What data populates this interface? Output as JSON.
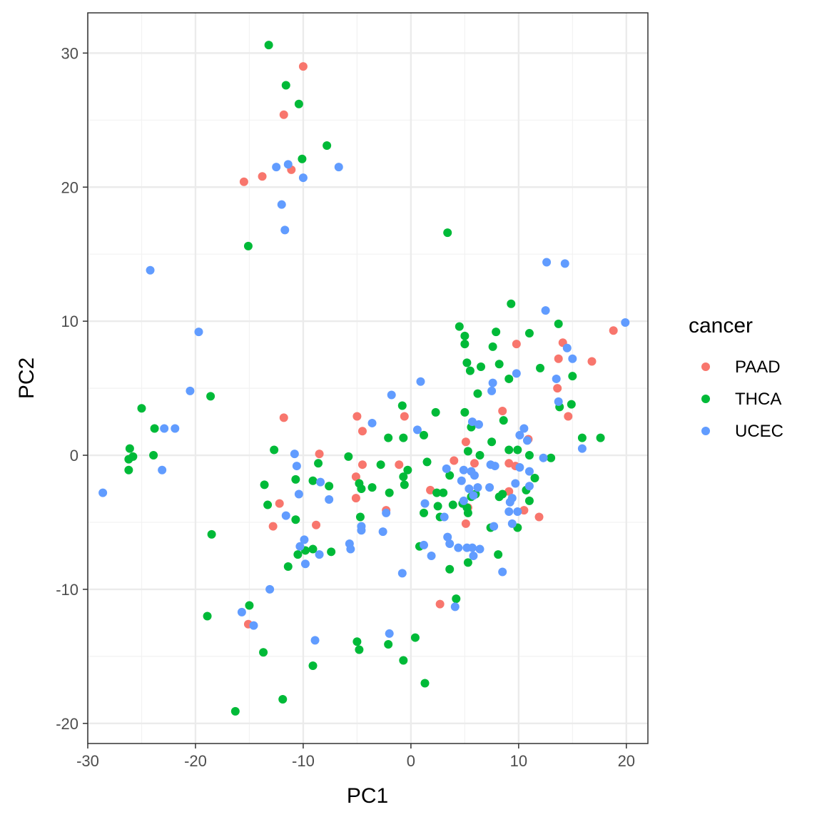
{
  "chart_data": {
    "type": "scatter",
    "xlabel": "PC1",
    "ylabel": "PC2",
    "xlim": [
      -30,
      22
    ],
    "ylim": [
      -21.5,
      33
    ],
    "x_ticks": [
      -30,
      -20,
      -10,
      0,
      10,
      20
    ],
    "y_ticks": [
      -20,
      -10,
      0,
      10,
      20,
      30
    ],
    "x_tick_labels": [
      "-30",
      "-20",
      "-10",
      "0",
      "10",
      "20"
    ],
    "y_tick_labels": [
      "-20",
      "-10",
      "0",
      "10",
      "20",
      "30"
    ],
    "grid": true,
    "legend": {
      "title": "cancer",
      "position": "right"
    },
    "series": [
      {
        "name": "PAAD",
        "color": "#F8766D",
        "points": [
          [
            -10,
            29
          ],
          [
            -11.8,
            25.4
          ],
          [
            -15.5,
            20.4
          ],
          [
            -13.8,
            20.8
          ],
          [
            -11.1,
            21.3
          ],
          [
            -11.8,
            2.8
          ],
          [
            -8.5,
            0.1
          ],
          [
            -12.2,
            -3.6
          ],
          [
            -12.8,
            -5.3
          ],
          [
            -8.8,
            -5.2
          ],
          [
            -15.1,
            -12.6
          ],
          [
            -5,
            2.9
          ],
          [
            -4.5,
            1.8
          ],
          [
            -5.1,
            -1.6
          ],
          [
            -4.5,
            -0.7
          ],
          [
            -5.1,
            -3.2
          ],
          [
            -2.3,
            -4.1
          ],
          [
            -0.6,
            2.9
          ],
          [
            -1.1,
            -0.7
          ],
          [
            1.8,
            -2.6
          ],
          [
            4,
            -0.4
          ],
          [
            5.1,
            1
          ],
          [
            5.9,
            -0.6
          ],
          [
            5.3,
            -3.9
          ],
          [
            5.1,
            -5.1
          ],
          [
            2.7,
            -11.1
          ],
          [
            8.5,
            3.3
          ],
          [
            9.8,
            8.3
          ],
          [
            9.1,
            -0.6
          ],
          [
            10.5,
            -4.1
          ],
          [
            9.1,
            -2.7
          ],
          [
            10.9,
            1.2
          ],
          [
            11.9,
            -4.6
          ],
          [
            13.6,
            5
          ],
          [
            13.7,
            7.2
          ],
          [
            14.1,
            8.4
          ],
          [
            14.6,
            2.9
          ],
          [
            16.8,
            7
          ],
          [
            18.8,
            9.3
          ],
          [
            9.7,
            -0.8
          ]
        ]
      },
      {
        "name": "THCA",
        "color": "#00BA38",
        "points": [
          [
            -13.2,
            30.6
          ],
          [
            -11.6,
            27.6
          ],
          [
            -10.4,
            26.2
          ],
          [
            -10.1,
            22.1
          ],
          [
            -7.8,
            23.1
          ],
          [
            -15.1,
            15.6
          ],
          [
            3.4,
            16.6
          ],
          [
            -25,
            3.5
          ],
          [
            -23.8,
            2
          ],
          [
            -26.1,
            0.5
          ],
          [
            -25.8,
            -0.1
          ],
          [
            -26.2,
            -0.3
          ],
          [
            -26.2,
            -1.1
          ],
          [
            -23.9,
            0
          ],
          [
            -18.6,
            4.4
          ],
          [
            -18.5,
            -5.9
          ],
          [
            -12.7,
            0.4
          ],
          [
            -13.6,
            -2.2
          ],
          [
            -13.3,
            -3.7
          ],
          [
            -10.7,
            -1.8
          ],
          [
            -10.7,
            -4.8
          ],
          [
            -8.6,
            -0.6
          ],
          [
            -7.6,
            -2.3
          ],
          [
            -9.1,
            -1.9
          ],
          [
            -9.1,
            -7
          ],
          [
            -10.5,
            -7.4
          ],
          [
            -9.8,
            -7.1
          ],
          [
            -7.4,
            -7.2
          ],
          [
            -11.4,
            -8.3
          ],
          [
            -15,
            -11.2
          ],
          [
            -18.9,
            -12
          ],
          [
            -13.7,
            -14.7
          ],
          [
            -16.3,
            -19.1
          ],
          [
            -11.9,
            -18.2
          ],
          [
            -9.1,
            -15.7
          ],
          [
            -5.8,
            -0.1
          ],
          [
            -4.8,
            -2.1
          ],
          [
            -4.6,
            -2.5
          ],
          [
            -3.6,
            -2.4
          ],
          [
            -4.7,
            -4.6
          ],
          [
            -2.8,
            -0.7
          ],
          [
            -2.1,
            1.3
          ],
          [
            -2,
            -2.8
          ],
          [
            -0.8,
            3.7
          ],
          [
            -0.7,
            1.3
          ],
          [
            -0.7,
            -1.6
          ],
          [
            -0.6,
            -2.2
          ],
          [
            -0.3,
            -1.1
          ],
          [
            0.8,
            -6.8
          ],
          [
            1.2,
            1.5
          ],
          [
            1.5,
            -0.5
          ],
          [
            1.2,
            -4.3
          ],
          [
            2.3,
            3.2
          ],
          [
            2.5,
            -3.8
          ],
          [
            2.4,
            -2.8
          ],
          [
            3,
            -2.8
          ],
          [
            2.7,
            -4.6
          ],
          [
            3.6,
            -1.5
          ],
          [
            3.9,
            -3.7
          ],
          [
            3.6,
            -8.5
          ],
          [
            4.5,
            9.6
          ],
          [
            5,
            8.9
          ],
          [
            5,
            8.3
          ],
          [
            5.2,
            6.9
          ],
          [
            5.5,
            6.3
          ],
          [
            5,
            3.2
          ],
          [
            5.6,
            2.1
          ],
          [
            5.3,
            0.3
          ],
          [
            4.8,
            -3.6
          ],
          [
            5.3,
            -4.3
          ],
          [
            5.2,
            -3.9
          ],
          [
            5.6,
            -3.1
          ],
          [
            6,
            -2.9
          ],
          [
            5.3,
            -8
          ],
          [
            4.2,
            -10.7
          ],
          [
            6.5,
            6.6
          ],
          [
            6.4,
            0
          ],
          [
            6.2,
            4.6
          ],
          [
            7.5,
            1
          ],
          [
            7.6,
            8.1
          ],
          [
            8.2,
            6.8
          ],
          [
            7.9,
            9.2
          ],
          [
            8.6,
            2.6
          ],
          [
            9.1,
            5.7
          ],
          [
            9.3,
            11.3
          ],
          [
            9.1,
            0.4
          ],
          [
            8.5,
            -2.9
          ],
          [
            8.2,
            -3.1
          ],
          [
            8.1,
            -7.4
          ],
          [
            7.4,
            -5.4
          ],
          [
            9.9,
            0.4
          ],
          [
            9.9,
            -5.4
          ],
          [
            10.7,
            -2.6
          ],
          [
            11,
            9.1
          ],
          [
            11,
            0
          ],
          [
            11,
            -3.4
          ],
          [
            11.5,
            -1.7
          ],
          [
            12,
            6.5
          ],
          [
            13,
            -0.2
          ],
          [
            13.7,
            9.8
          ],
          [
            13.8,
            3.6
          ],
          [
            14.9,
            3.8
          ],
          [
            15,
            5.9
          ],
          [
            15.9,
            1.3
          ],
          [
            17.6,
            1.3
          ],
          [
            -5,
            -13.9
          ],
          [
            -4.8,
            -14.5
          ],
          [
            -2.1,
            -14.1
          ],
          [
            -0.7,
            -15.3
          ],
          [
            0.4,
            -13.6
          ],
          [
            1.3,
            -17
          ]
        ]
      },
      {
        "name": "UCEC",
        "color": "#619CFF",
        "points": [
          [
            -12.5,
            21.5
          ],
          [
            -11.4,
            21.7
          ],
          [
            -10,
            20.7
          ],
          [
            -6.7,
            21.5
          ],
          [
            -12,
            18.7
          ],
          [
            -11.7,
            16.8
          ],
          [
            -24.2,
            13.8
          ],
          [
            -19.7,
            9.2
          ],
          [
            -20.5,
            4.8
          ],
          [
            -22.9,
            2
          ],
          [
            -21.9,
            2
          ],
          [
            -23.1,
            -1.1
          ],
          [
            -28.6,
            -2.8
          ],
          [
            -10.8,
            0.1
          ],
          [
            -10.6,
            -0.8
          ],
          [
            -10.4,
            -2.9
          ],
          [
            -11.6,
            -4.5
          ],
          [
            -8.4,
            -2
          ],
          [
            -7.6,
            -3.3
          ],
          [
            -10.3,
            -6.8
          ],
          [
            -9.9,
            -6.3
          ],
          [
            -9.8,
            -8.1
          ],
          [
            -8.5,
            -7.4
          ],
          [
            -13.1,
            -10
          ],
          [
            -15.7,
            -11.7
          ],
          [
            -14.6,
            -12.7
          ],
          [
            -8.9,
            -13.8
          ],
          [
            -5.7,
            -6.6
          ],
          [
            -5.6,
            -7
          ],
          [
            -4.6,
            -5.3
          ],
          [
            -4.6,
            -5.6
          ],
          [
            -3.6,
            2.4
          ],
          [
            -2.6,
            -5.7
          ],
          [
            -2.3,
            -4.3
          ],
          [
            -1.8,
            4.5
          ],
          [
            -0.8,
            -8.8
          ],
          [
            -2,
            -13.3
          ],
          [
            0.6,
            1.9
          ],
          [
            0.9,
            5.5
          ],
          [
            1.2,
            -6.7
          ],
          [
            1.3,
            -3.6
          ],
          [
            1.9,
            -7.5
          ],
          [
            3.3,
            -1
          ],
          [
            3.6,
            -6.6
          ],
          [
            3.4,
            -6.1
          ],
          [
            3.1,
            -4.6
          ],
          [
            4.7,
            -1.9
          ],
          [
            4.9,
            -1.1
          ],
          [
            5.6,
            -1.2
          ],
          [
            5.9,
            -1.5
          ],
          [
            5.8,
            -3
          ],
          [
            4.9,
            -3.4
          ],
          [
            5.4,
            -2.5
          ],
          [
            5.7,
            2.5
          ],
          [
            4.4,
            -6.9
          ],
          [
            5.2,
            -6.9
          ],
          [
            5.7,
            -6.9
          ],
          [
            6.4,
            -7
          ],
          [
            5.8,
            -7.5
          ],
          [
            4.1,
            -11.3
          ],
          [
            6.2,
            -2.4
          ],
          [
            7.3,
            -2.4
          ],
          [
            7.5,
            4.8
          ],
          [
            7.6,
            5.4
          ],
          [
            7.7,
            -5.3
          ],
          [
            8.5,
            -8.7
          ],
          [
            7.4,
            -0.7
          ],
          [
            7.8,
            -0.8
          ],
          [
            9.8,
            6.1
          ],
          [
            9.4,
            -3.2
          ],
          [
            9.1,
            -4.2
          ],
          [
            9.4,
            -5.1
          ],
          [
            9.7,
            -2.1
          ],
          [
            9.9,
            -4.2
          ],
          [
            10.1,
            -0.9
          ],
          [
            10.1,
            1.5
          ],
          [
            10.5,
            2
          ],
          [
            10.8,
            1.1
          ],
          [
            11,
            -1.2
          ],
          [
            11,
            -2.3
          ],
          [
            12.3,
            -0.2
          ],
          [
            12.5,
            10.8
          ],
          [
            12.6,
            14.4
          ],
          [
            14.3,
            14.3
          ],
          [
            13.5,
            5.7
          ],
          [
            13.7,
            4
          ],
          [
            14.5,
            8
          ],
          [
            15,
            7.2
          ],
          [
            15.9,
            0.5
          ],
          [
            19.9,
            9.9
          ],
          [
            9.2,
            -3.5
          ],
          [
            6.3,
            2.3
          ]
        ]
      }
    ]
  }
}
